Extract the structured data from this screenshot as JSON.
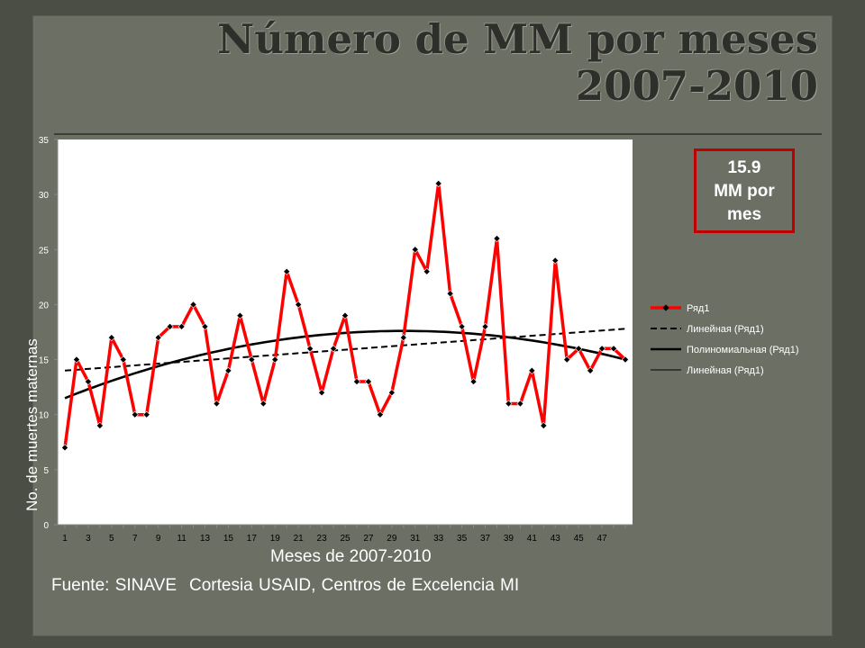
{
  "title": "Número de MM por meses 2007-2010",
  "callout": {
    "line1": "15.9",
    "line2": "MM por",
    "line3": "mes"
  },
  "source": {
    "part1": "Fuente: SINAVE",
    "part2": "Cortesia USAID, Centros de Excelencia MI"
  },
  "colors": {
    "series": "#ff0000",
    "marker": "#000000",
    "trend": "#000000",
    "callout_border": "#c00000"
  },
  "chart_data": {
    "type": "line",
    "xlabel": "Meses de 2007-2010",
    "ylabel": "No. de muertes maternas",
    "ylim": [
      0,
      35
    ],
    "yticks": [
      0,
      5,
      10,
      15,
      20,
      25,
      30,
      35
    ],
    "xticks": [
      1,
      3,
      5,
      7,
      9,
      11,
      13,
      15,
      17,
      19,
      21,
      23,
      25,
      27,
      29,
      31,
      33,
      35,
      37,
      39,
      41,
      43,
      45,
      47
    ],
    "x": [
      1,
      2,
      3,
      4,
      5,
      6,
      7,
      8,
      9,
      10,
      11,
      12,
      13,
      14,
      15,
      16,
      17,
      18,
      19,
      20,
      21,
      22,
      23,
      24,
      25,
      26,
      27,
      28,
      29,
      30,
      31,
      32,
      33,
      34,
      35,
      36,
      37,
      38,
      39,
      40,
      41,
      42,
      43,
      44,
      45,
      46,
      47,
      48,
      49
    ],
    "series": [
      {
        "name": "Ряд1",
        "values": [
          7,
          15,
          13,
          9,
          17,
          15,
          10,
          10,
          17,
          18,
          18,
          20,
          18,
          11,
          14,
          19,
          15,
          11,
          15,
          23,
          20,
          16,
          12,
          16,
          19,
          13,
          13,
          10,
          12,
          17,
          25,
          23,
          31,
          21,
          18,
          13,
          18,
          26,
          11,
          11,
          14,
          9,
          24,
          15,
          16,
          14,
          16,
          16,
          15
        ]
      }
    ],
    "trendlines": [
      {
        "name": "Линейная (Ряд1)",
        "kind": "linear",
        "style": "dashed",
        "start": 14.0,
        "end": 17.8
      },
      {
        "name": "Полиномиальная (Ряд1)",
        "kind": "polynomial",
        "style": "solid-thick",
        "start": 11.5,
        "peak": 17.6,
        "peak_x": 29,
        "end": 15.0
      },
      {
        "name": "Линейная (Ряд1)",
        "kind": "linear",
        "style": "thin",
        "legend_only": true
      }
    ],
    "legend": [
      "Ряд1",
      "Линейная (Ряд1)",
      "Полиномиальная (Ряд1)",
      "Линейная (Ряд1)"
    ],
    "legend_position": "right",
    "grid": false
  }
}
